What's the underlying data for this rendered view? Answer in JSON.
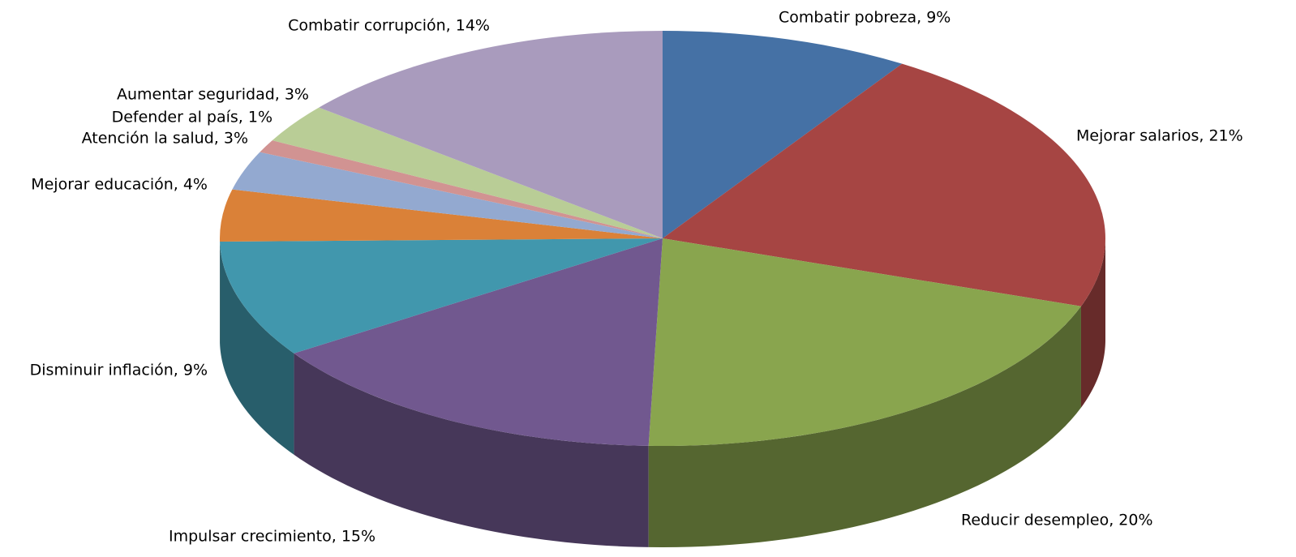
{
  "chart_data": {
    "type": "pie3d",
    "values": [
      9,
      21,
      20,
      15,
      9,
      4,
      3,
      1,
      3,
      14
    ],
    "value_labels": [
      "Combatir pobreza, 9%",
      "Mejorar salarios, 21%",
      "Reducir desempleo, 20%",
      "Impulsar crecimiento, 15%",
      "Disminuir inflación, 9%",
      "Mejorar educación, 4%",
      "Atención la salud, 3%",
      "Defender al país, 1%",
      "Aumentar seguridad, 3%",
      "Combatir corrupción, 14%"
    ],
    "colors": [
      "#4571a5",
      "#a64543",
      "#89a54e",
      "#71588f",
      "#4197ad",
      "#da8138",
      "#93a9d0",
      "#d19392",
      "#b9cd96",
      "#a99bbd"
    ]
  }
}
